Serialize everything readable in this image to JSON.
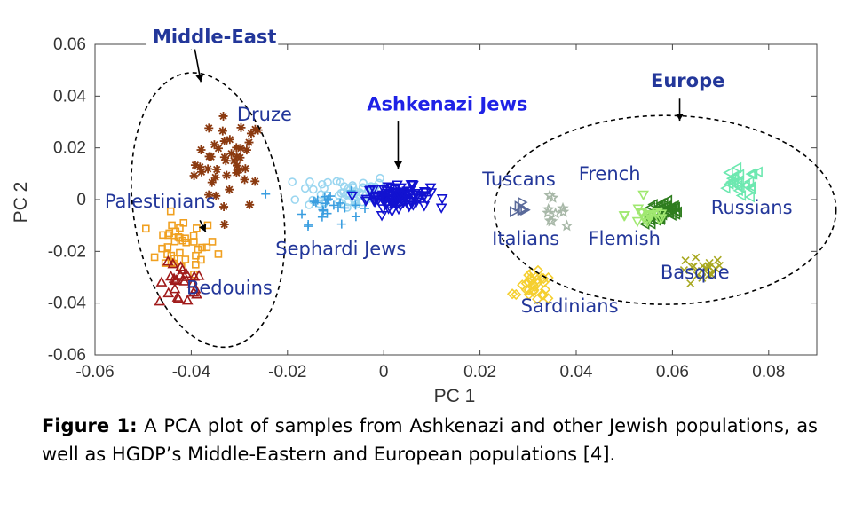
{
  "chart_data": {
    "type": "scatter",
    "xlabel": "PC 1",
    "ylabel": "PC 2",
    "xlim": [
      -0.06,
      0.09
    ],
    "ylim": [
      -0.06,
      0.06
    ],
    "xticks": [
      "-0.06",
      "-0.04",
      "-0.02",
      "0",
      "0.02",
      "0.04",
      "0.06",
      "0.08"
    ],
    "xtick_values": [
      -0.06,
      -0.04,
      -0.02,
      0,
      0.02,
      0.04,
      0.06,
      0.08
    ],
    "yticks": [
      "0.06",
      "0.04",
      "0.02",
      "0",
      "-0.02",
      "-0.04",
      "-0.06"
    ],
    "ytick_values": [
      0.06,
      0.04,
      0.02,
      0,
      -0.02,
      -0.04,
      -0.06
    ],
    "grid": false,
    "series": [
      {
        "name": "Druze",
        "marker": "asterisk",
        "color": "#8b3a10",
        "center": [
          -0.032,
          0.014
        ],
        "spread": [
          0.006,
          0.015
        ],
        "n": 45
      },
      {
        "name": "Palestinians",
        "marker": "square",
        "color": "#f0a020",
        "center": [
          -0.042,
          -0.018
        ],
        "spread": [
          0.006,
          0.009
        ],
        "n": 40
      },
      {
        "name": "Bedouins",
        "marker": "triangle-up",
        "color": "#a01a1a",
        "center": [
          -0.042,
          -0.033
        ],
        "spread": [
          0.004,
          0.007
        ],
        "n": 25
      },
      {
        "name": "Sephardi Jews",
        "marker": "circle",
        "color": "#9ad6f0",
        "center": [
          -0.008,
          0.003
        ],
        "spread": [
          0.008,
          0.006
        ],
        "n": 55
      },
      {
        "name": "Sephardi Jews",
        "marker": "plus",
        "color": "#3a9ee0",
        "center": [
          -0.012,
          -0.002
        ],
        "spread": [
          0.006,
          0.006
        ],
        "n": 25
      },
      {
        "name": "Ashkenazi Jews",
        "marker": "triangle-down",
        "color": "#1212d0",
        "center": [
          0.003,
          0.001
        ],
        "spread": [
          0.0055,
          0.0035
        ],
        "n": 110
      },
      {
        "name": "Tuscans",
        "marker": "triangle-right",
        "color": "#5a6a9a",
        "center": [
          0.0285,
          -0.004
        ],
        "spread": [
          0.0015,
          0.004
        ],
        "n": 6
      },
      {
        "name": "Italians",
        "marker": "star",
        "color": "#a8b8a8",
        "center": [
          0.034,
          -0.004
        ],
        "spread": [
          0.003,
          0.004
        ],
        "n": 10
      },
      {
        "name": "French",
        "marker": "triangle-left",
        "color": "#2e7d1e",
        "center": [
          0.0585,
          -0.005
        ],
        "spread": [
          0.0035,
          0.004
        ],
        "n": 35
      },
      {
        "name": "Flemish",
        "marker": "triangle-down",
        "color": "#a0e870",
        "center": [
          0.055,
          -0.006
        ],
        "spread": [
          0.004,
          0.004
        ],
        "n": 18
      },
      {
        "name": "Russians",
        "marker": "triangle-left",
        "color": "#6de8b0",
        "center": [
          0.074,
          0.006
        ],
        "spread": [
          0.004,
          0.005
        ],
        "n": 25
      },
      {
        "name": "Basque",
        "marker": "x",
        "color": "#a8a820",
        "center": [
          0.066,
          -0.028
        ],
        "spread": [
          0.004,
          0.005
        ],
        "n": 20
      },
      {
        "name": "Sardinians",
        "marker": "diamond",
        "color": "#f5cf30",
        "center": [
          0.0315,
          -0.034
        ],
        "spread": [
          0.003,
          0.0045
        ],
        "n": 30
      }
    ],
    "labels": [
      {
        "text": "Middle-East",
        "x": -0.048,
        "y": 0.0605,
        "style": "bold"
      },
      {
        "text": "Druze",
        "x": -0.0305,
        "y": 0.0305,
        "style": "normal"
      },
      {
        "text": "Palestinians",
        "x": -0.058,
        "y": -0.003,
        "style": "normal"
      },
      {
        "text": "Bedouins",
        "x": -0.041,
        "y": -0.0365,
        "style": "normal"
      },
      {
        "text": "Ashkenazi Jews",
        "x": -0.0035,
        "y": 0.0345,
        "style": "ash"
      },
      {
        "text": "Sephardi Jews",
        "x": -0.0225,
        "y": -0.0215,
        "style": "normal"
      },
      {
        "text": "Europe",
        "x": 0.0555,
        "y": 0.0435,
        "style": "bold"
      },
      {
        "text": "Tuscans",
        "x": 0.0205,
        "y": 0.0055,
        "style": "normal"
      },
      {
        "text": "French",
        "x": 0.0405,
        "y": 0.0075,
        "style": "normal"
      },
      {
        "text": "Russians",
        "x": 0.068,
        "y": -0.0055,
        "style": "normal"
      },
      {
        "text": "Italians",
        "x": 0.0225,
        "y": -0.0175,
        "style": "normal"
      },
      {
        "text": "Flemish",
        "x": 0.0425,
        "y": -0.0175,
        "style": "normal"
      },
      {
        "text": "Basque",
        "x": 0.0575,
        "y": -0.0305,
        "style": "normal"
      },
      {
        "text": "Sardinians",
        "x": 0.0285,
        "y": -0.0435,
        "style": "normal"
      }
    ],
    "ellipses": [
      {
        "name": "Middle-East",
        "cx": -0.0365,
        "cy": -0.004,
        "rx": 0.0155,
        "ry": 0.0535,
        "angle_deg": -9
      },
      {
        "name": "Europe",
        "cx": 0.0585,
        "cy": -0.004,
        "rx": 0.0355,
        "ry": 0.0365,
        "angle_deg": 0
      }
    ],
    "arrows": [
      {
        "from": [
          -0.0395,
          0.0605
        ],
        "to": [
          -0.038,
          0.0455
        ]
      },
      {
        "from": [
          0.003,
          0.0305
        ],
        "to": [
          0.003,
          0.012
        ]
      },
      {
        "from": [
          0.0615,
          0.039
        ],
        "to": [
          0.0615,
          0.0305
        ]
      },
      {
        "from": [
          -0.0382,
          -0.008
        ],
        "to": [
          -0.037,
          -0.0125
        ]
      }
    ]
  },
  "caption": {
    "label": "Figure 1:",
    "text": " A PCA plot of samples from Ashkenazi and other Jewish populations, as well as HGDP’s Middle-Eastern and European populations [4]."
  }
}
